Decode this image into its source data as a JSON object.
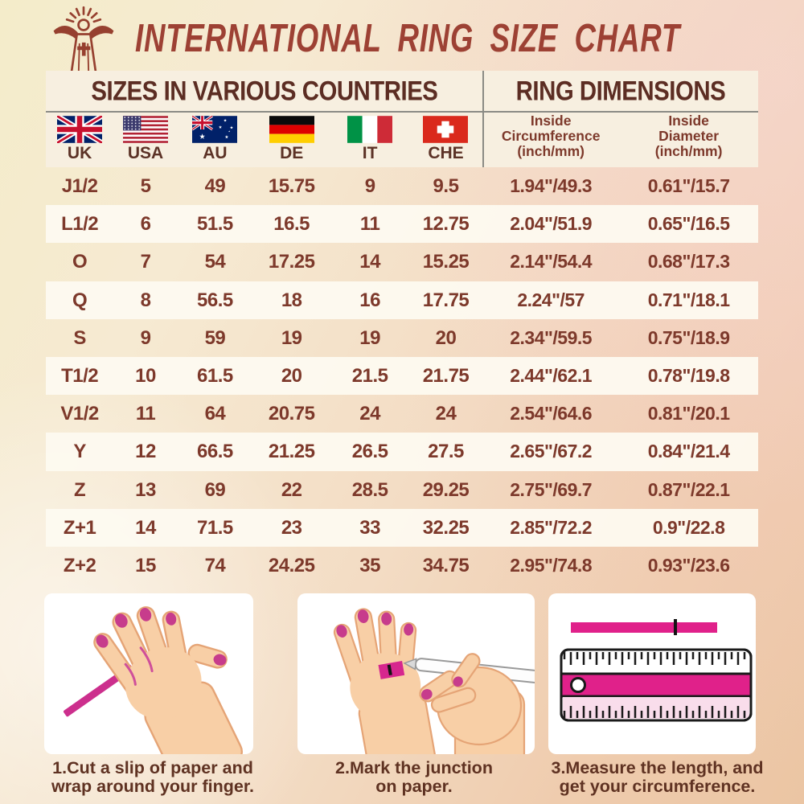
{
  "page": {
    "title": "INTERNATIONAL RING SIZE CHART"
  },
  "table": {
    "section_headers": {
      "left": "SIZES IN VARIOUS COUNTRIES",
      "right": "RING DIMENSIONS"
    },
    "columns": [
      {
        "label": "UK",
        "flag": "uk-flag"
      },
      {
        "label": "USA",
        "flag": "usa-flag"
      },
      {
        "label": "AU",
        "flag": "australia-flag"
      },
      {
        "label": "DE",
        "flag": "germany-flag"
      },
      {
        "label": "IT",
        "flag": "italy-flag"
      },
      {
        "label": "CHE",
        "flag": "switzerland-flag"
      }
    ],
    "dimension_columns": [
      {
        "line1": "Inside",
        "line2": "Circumference",
        "line3": "(inch/mm)"
      },
      {
        "line1": "Inside",
        "line2": "Diameter",
        "line3": "(inch/mm)"
      }
    ],
    "rows": [
      [
        "J1/2",
        "5",
        "49",
        "15.75",
        "9",
        "9.5",
        "1.94\"/49.3",
        "0.61\"/15.7"
      ],
      [
        "L1/2",
        "6",
        "51.5",
        "16.5",
        "11",
        "12.75",
        "2.04\"/51.9",
        "0.65\"/16.5"
      ],
      [
        "O",
        "7",
        "54",
        "17.25",
        "14",
        "15.25",
        "2.14\"/54.4",
        "0.68\"/17.3"
      ],
      [
        "Q",
        "8",
        "56.5",
        "18",
        "16",
        "17.75",
        "2.24\"/57",
        "0.71\"/18.1"
      ],
      [
        "S",
        "9",
        "59",
        "19",
        "19",
        "20",
        "2.34\"/59.5",
        "0.75\"/18.9"
      ],
      [
        "T1/2",
        "10",
        "61.5",
        "20",
        "21.5",
        "21.75",
        "2.44\"/62.1",
        "0.78\"/19.8"
      ],
      [
        "V1/2",
        "11",
        "64",
        "20.75",
        "24",
        "24",
        "2.54\"/64.6",
        "0.81\"/20.1"
      ],
      [
        "Y",
        "12",
        "66.5",
        "21.25",
        "26.5",
        "27.5",
        "2.65\"/67.2",
        "0.84\"/21.4"
      ],
      [
        "Z",
        "13",
        "69",
        "22",
        "28.5",
        "29.25",
        "2.75\"/69.7",
        "0.87\"/22.1"
      ],
      [
        "Z+1",
        "14",
        "71.5",
        "23",
        "33",
        "32.25",
        "2.85\"/72.2",
        "0.9\"/22.8"
      ],
      [
        "Z+2",
        "15",
        "74",
        "24.25",
        "35",
        "34.75",
        "2.95\"/74.8",
        "0.93\"/23.6"
      ]
    ]
  },
  "steps": [
    {
      "line1": "1.Cut a slip of paper and",
      "line2": "wrap around your finger.",
      "illustration": "hand-with-paper-strip"
    },
    {
      "line1": "2.Mark the junction",
      "line2": "on paper.",
      "illustration": "mark-junction-with-pen"
    },
    {
      "line1": "3.Measure the length, and",
      "line2": "get your circumference.",
      "illustration": "ruler-measure-strip"
    }
  ],
  "chart_data": {
    "type": "table",
    "title": "INTERNATIONAL RING SIZE CHART",
    "column_headers": [
      "UK",
      "USA",
      "AU",
      "DE",
      "IT",
      "CHE",
      "Inside Circumference (inch/mm)",
      "Inside Diameter (inch/mm)"
    ],
    "rows": [
      [
        "J1/2",
        "5",
        "49",
        "15.75",
        "9",
        "9.5",
        "1.94\"/49.3",
        "0.61\"/15.7"
      ],
      [
        "L1/2",
        "6",
        "51.5",
        "16.5",
        "11",
        "12.75",
        "2.04\"/51.9",
        "0.65\"/16.5"
      ],
      [
        "O",
        "7",
        "54",
        "17.25",
        "14",
        "15.25",
        "2.14\"/54.4",
        "0.68\"/17.3"
      ],
      [
        "Q",
        "8",
        "56.5",
        "18",
        "16",
        "17.75",
        "2.24\"/57",
        "0.71\"/18.1"
      ],
      [
        "S",
        "9",
        "59",
        "19",
        "19",
        "20",
        "2.34\"/59.5",
        "0.75\"/18.9"
      ],
      [
        "T1/2",
        "10",
        "61.5",
        "20",
        "21.5",
        "21.75",
        "2.44\"/62.1",
        "0.78\"/19.8"
      ],
      [
        "V1/2",
        "11",
        "64",
        "20.75",
        "24",
        "24",
        "2.54\"/64.6",
        "0.81\"/20.1"
      ],
      [
        "Y",
        "12",
        "66.5",
        "21.25",
        "26.5",
        "27.5",
        "2.65\"/67.2",
        "0.84\"/21.4"
      ],
      [
        "Z",
        "13",
        "69",
        "22",
        "28.5",
        "29.25",
        "2.75\"/69.7",
        "0.87\"/22.1"
      ],
      [
        "Z+1",
        "14",
        "71.5",
        "23",
        "33",
        "32.25",
        "2.85\"/72.2",
        "0.9\"/22.8"
      ],
      [
        "Z+2",
        "15",
        "74",
        "24.25",
        "35",
        "34.75",
        "2.95\"/74.8",
        "0.93\"/23.6"
      ]
    ]
  },
  "colors": {
    "title": "#9d4134",
    "table_text": "#7d392b",
    "section_header_text": "#5c2d23",
    "caption_text": "#5f3222",
    "panel_bg": "#f7efe0",
    "band_bg": "#fdfaf0",
    "magenta_accent": "#d6278e",
    "skin_tone": "#f8cfa6"
  }
}
